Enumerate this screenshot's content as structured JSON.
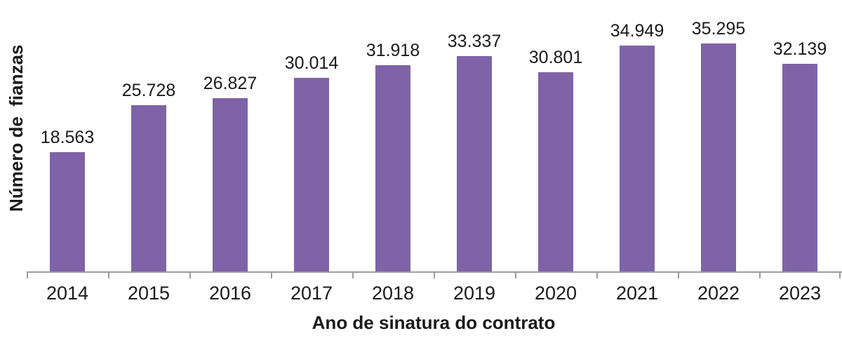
{
  "chart_data": {
    "type": "bar",
    "title": "",
    "categories": [
      "2014",
      "2015",
      "2016",
      "2017",
      "2018",
      "2019",
      "2020",
      "2021",
      "2022",
      "2023"
    ],
    "values": [
      18563,
      25728,
      26827,
      30014,
      31918,
      33337,
      30801,
      34949,
      35295,
      32139
    ],
    "value_labels": [
      "18.563",
      "25.728",
      "26.827",
      "30.014",
      "31.918",
      "33.337",
      "30.801",
      "34.949",
      "35.295",
      "32.139"
    ],
    "xlabel": "Ano de sinatura do contrato",
    "ylabel": "Número de  fianzas",
    "ylim": [
      0,
      42000
    ],
    "grid": false,
    "legend": false,
    "layout": {
      "bar_color": "#7E63A6",
      "axis_color": "#9c9c9c",
      "text_color": "#1a1a1a",
      "background": "#ffffff",
      "data_labels": "above bars",
      "tick_marks": "outside, at category boundaries"
    }
  }
}
